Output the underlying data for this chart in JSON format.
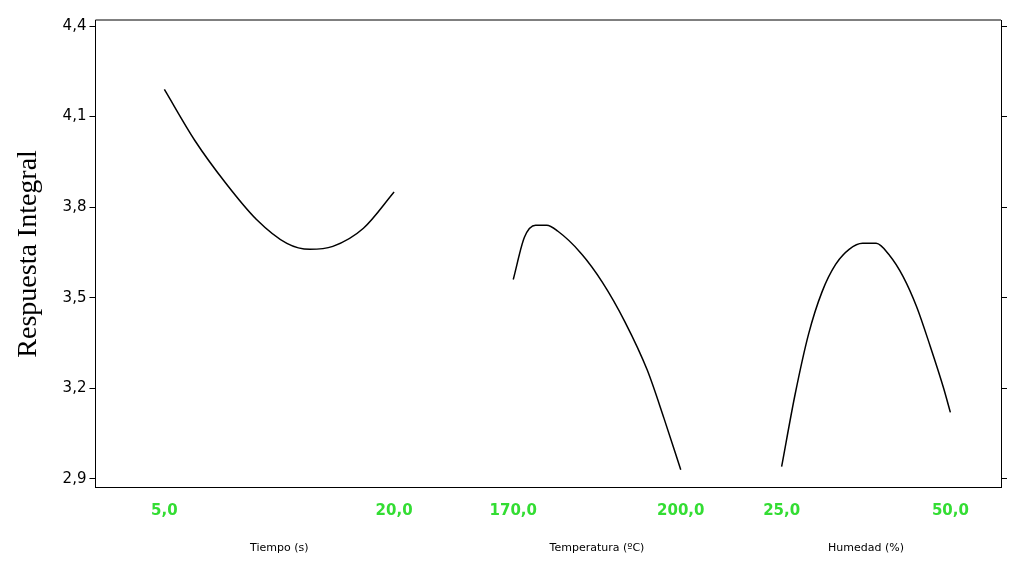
{
  "chart_data": [
    {
      "type": "line",
      "ylabel": "Respuesta Integral",
      "xlabel": "Tiempo (s)",
      "xlim": [
        0.5,
        24.5
      ],
      "xticks": [
        {
          "value": 5,
          "label": "5,0"
        },
        {
          "value": 20,
          "label": "20,0"
        }
      ],
      "ylim": [
        2.87,
        4.42
      ],
      "yticks": [
        {
          "value": 2.9,
          "label": "2,9"
        },
        {
          "value": 3.2,
          "label": "3,2"
        },
        {
          "value": 3.5,
          "label": "3,5"
        },
        {
          "value": 3.8,
          "label": "3,8"
        },
        {
          "value": 4.1,
          "label": "4,1"
        },
        {
          "value": 4.4,
          "label": "4,4"
        }
      ],
      "series": [
        {
          "color": "#000000",
          "x": [
            5,
            7,
            9,
            11,
            13,
            14.5,
            16,
            18,
            20
          ],
          "values": [
            4.19,
            4.02,
            3.88,
            3.76,
            3.68,
            3.66,
            3.67,
            3.73,
            3.85
          ]
        }
      ]
    },
    {
      "type": "line",
      "xlabel": "Temperatura (ºC)",
      "tick_labels": "x",
      "xlim": [
        161,
        209
      ],
      "xticks": [
        {
          "value": 170,
          "label": "170,0"
        },
        {
          "value": 200,
          "label": "200,0"
        }
      ],
      "ylim": [
        2.87,
        4.42
      ],
      "series": [
        {
          "color": "#000000",
          "x": [
            170,
            172,
            174,
            176,
            178,
            182,
            186,
            190,
            194,
            197,
            200
          ],
          "values": [
            3.56,
            3.7,
            3.74,
            3.74,
            3.72,
            3.65,
            3.55,
            3.42,
            3.26,
            3.1,
            2.93
          ]
        }
      ]
    },
    {
      "type": "line",
      "xlabel": "Humedad (%)",
      "tick_labels": "x",
      "xlim": [
        17.5,
        57.5
      ],
      "xticks": [
        {
          "value": 25,
          "label": "25,0"
        },
        {
          "value": 50,
          "label": "50,0"
        }
      ],
      "ylim": [
        2.87,
        4.42
      ],
      "series": [
        {
          "color": "#000000",
          "x": [
            25,
            27,
            29,
            31,
            33,
            35,
            37,
            39,
            41,
            43,
            45,
            47,
            49,
            50
          ],
          "values": [
            2.94,
            3.18,
            3.38,
            3.52,
            3.61,
            3.66,
            3.68,
            3.68,
            3.64,
            3.57,
            3.47,
            3.34,
            3.2,
            3.12
          ]
        }
      ]
    }
  ]
}
